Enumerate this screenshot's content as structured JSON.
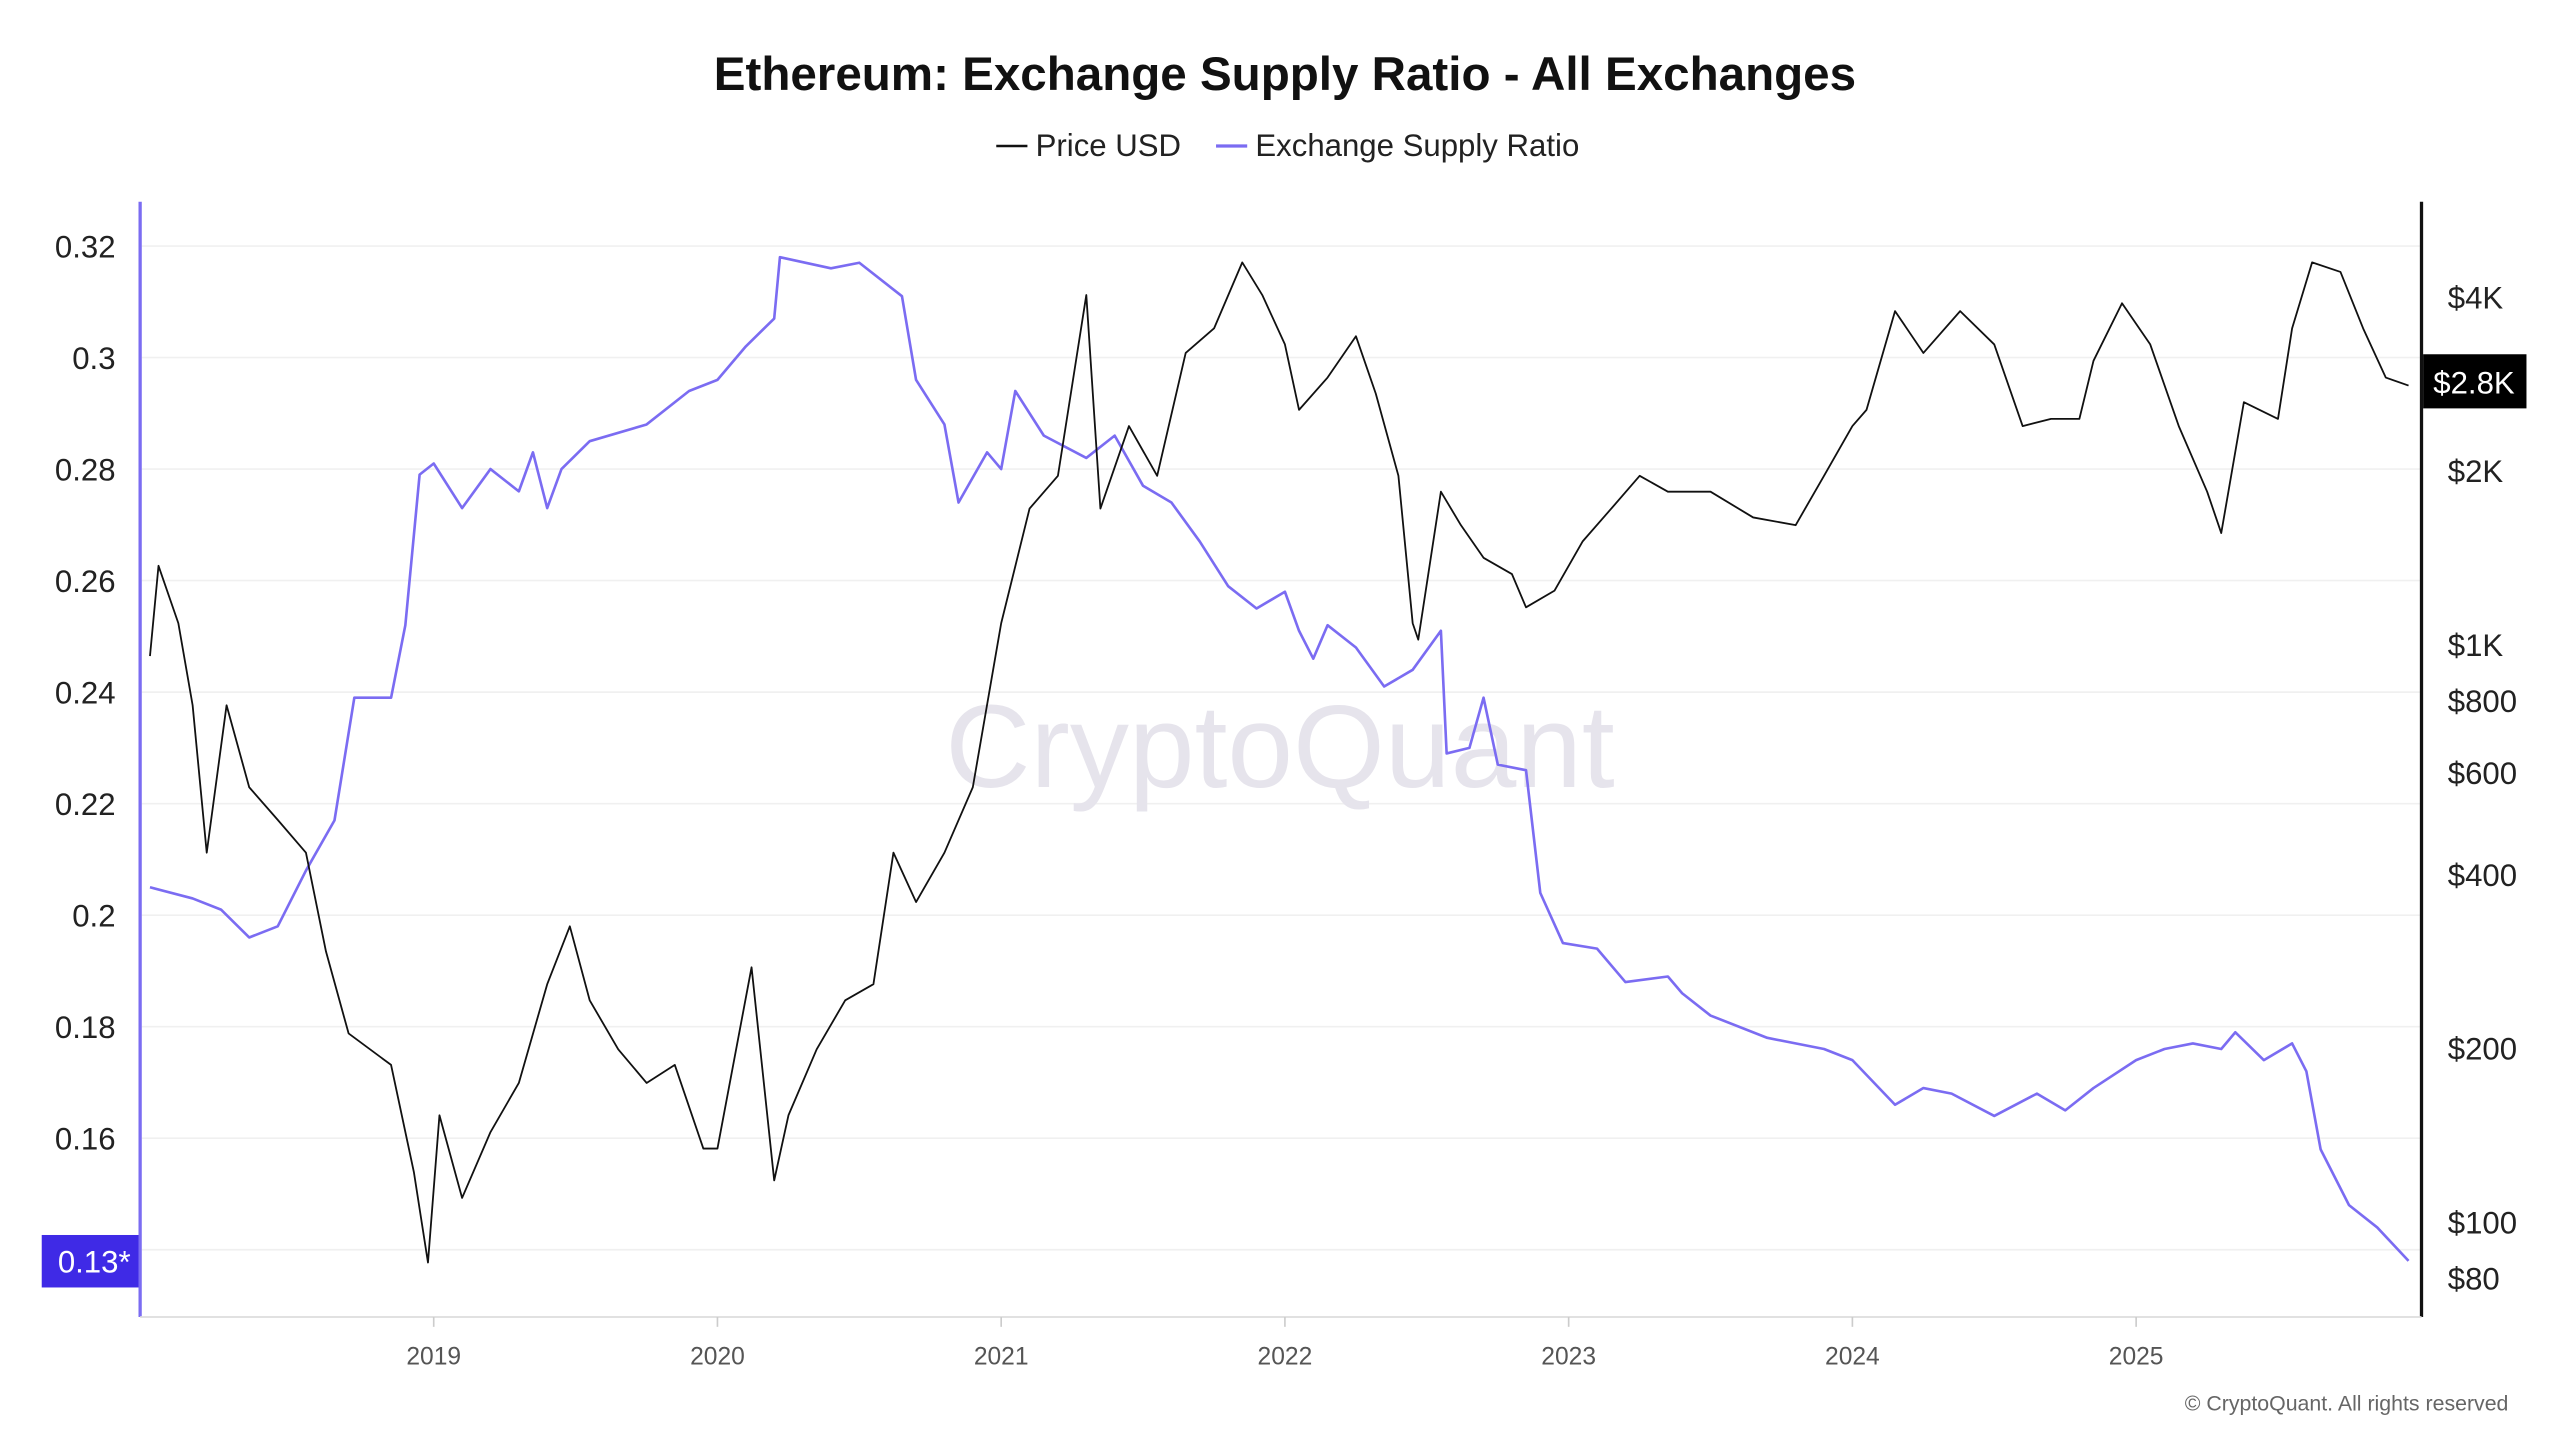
{
  "chart_data": {
    "type": "line",
    "title": "Ethereum: Exchange Supply Ratio - All Exchanges",
    "legend": [
      "Price USD",
      "Exchange Supply Ratio"
    ],
    "legend_position": "top-center",
    "watermark": "CryptoQuant",
    "footer": "© CryptoQuant. All rights reserved",
    "x_ticks": [
      "2019",
      "2020",
      "2021",
      "2022",
      "2023",
      "2024",
      "2025"
    ],
    "x_range": [
      2018.0,
      2025.96
    ],
    "left_axis": {
      "ticks": [
        0.32,
        0.3,
        0.28,
        0.26,
        0.24,
        0.22,
        0.2,
        0.18,
        0.16
      ],
      "labels": [
        "0.32",
        "0.3",
        "0.28",
        "0.26",
        "0.24",
        "0.22",
        "0.2",
        "0.18",
        "0.16"
      ],
      "current_label": "0.13*",
      "range": [
        0.128,
        0.328
      ]
    },
    "right_axis": {
      "scale": "log",
      "ticks": [
        4000,
        2000,
        1000,
        800,
        600,
        400,
        200,
        100,
        80
      ],
      "labels": [
        "$4K",
        "$2K",
        "$1K",
        "$800",
        "$600",
        "$400",
        "$200",
        "$100",
        "$80"
      ],
      "current_label": "$2.8K"
    },
    "colors": {
      "price": "#111111",
      "ratio": "#7b6cf2",
      "ratio_badge": "#3f2ae6",
      "price_badge": "#000000"
    },
    "series": [
      {
        "name": "Exchange Supply Ratio",
        "axis": "left",
        "x": [
          2018.0,
          2018.15,
          2018.25,
          2018.35,
          2018.45,
          2018.55,
          2018.65,
          2018.72,
          2018.85,
          2018.9,
          2018.95,
          2019.0,
          2019.1,
          2019.2,
          2019.3,
          2019.35,
          2019.4,
          2019.45,
          2019.55,
          2019.75,
          2019.9,
          2020.0,
          2020.1,
          2020.2,
          2020.22,
          2020.4,
          2020.5,
          2020.65,
          2020.7,
          2020.8,
          2020.85,
          2020.95,
          2021.0,
          2021.05,
          2021.15,
          2021.3,
          2021.4,
          2021.5,
          2021.6,
          2021.7,
          2021.8,
          2021.9,
          2022.0,
          2022.05,
          2022.1,
          2022.15,
          2022.25,
          2022.35,
          2022.45,
          2022.55,
          2022.57,
          2022.65,
          2022.7,
          2022.75,
          2022.85,
          2022.9,
          2022.98,
          2023.1,
          2023.2,
          2023.35,
          2023.4,
          2023.5,
          2023.7,
          2023.9,
          2024.0,
          2024.15,
          2024.25,
          2024.35,
          2024.5,
          2024.65,
          2024.75,
          2024.85,
          2025.0,
          2025.1,
          2025.2,
          2025.3,
          2025.35,
          2025.45,
          2025.55,
          2025.6,
          2025.65,
          2025.75,
          2025.85,
          2025.96
        ],
        "values": [
          0.205,
          0.203,
          0.201,
          0.196,
          0.198,
          0.208,
          0.217,
          0.239,
          0.239,
          0.252,
          0.279,
          0.281,
          0.273,
          0.28,
          0.276,
          0.283,
          0.273,
          0.28,
          0.285,
          0.288,
          0.294,
          0.296,
          0.302,
          0.307,
          0.318,
          0.316,
          0.317,
          0.311,
          0.296,
          0.288,
          0.274,
          0.283,
          0.28,
          0.294,
          0.286,
          0.282,
          0.286,
          0.277,
          0.274,
          0.267,
          0.259,
          0.255,
          0.258,
          0.251,
          0.246,
          0.252,
          0.248,
          0.241,
          0.244,
          0.251,
          0.229,
          0.23,
          0.239,
          0.227,
          0.226,
          0.204,
          0.195,
          0.194,
          0.188,
          0.189,
          0.186,
          0.182,
          0.178,
          0.176,
          0.174,
          0.166,
          0.169,
          0.168,
          0.164,
          0.168,
          0.165,
          0.169,
          0.174,
          0.176,
          0.177,
          0.176,
          0.179,
          0.174,
          0.177,
          0.172,
          0.158,
          0.148,
          0.144,
          0.138
        ]
      },
      {
        "name": "Price USD",
        "axis": "right",
        "x": [
          2018.0,
          2018.03,
          2018.1,
          2018.15,
          2018.2,
          2018.27,
          2018.35,
          2018.45,
          2018.55,
          2018.62,
          2018.7,
          2018.85,
          2018.93,
          2018.98,
          2019.02,
          2019.1,
          2019.2,
          2019.3,
          2019.4,
          2019.48,
          2019.55,
          2019.65,
          2019.75,
          2019.85,
          2019.95,
          2020.0,
          2020.12,
          2020.2,
          2020.25,
          2020.35,
          2020.45,
          2020.55,
          2020.62,
          2020.7,
          2020.8,
          2020.9,
          2021.0,
          2021.1,
          2021.2,
          2021.3,
          2021.35,
          2021.45,
          2021.55,
          2021.65,
          2021.75,
          2021.85,
          2021.92,
          2022.0,
          2022.05,
          2022.15,
          2022.25,
          2022.32,
          2022.4,
          2022.45,
          2022.47,
          2022.55,
          2022.62,
          2022.7,
          2022.8,
          2022.85,
          2022.95,
          2023.05,
          2023.15,
          2023.25,
          2023.35,
          2023.5,
          2023.65,
          2023.8,
          2023.9,
          2024.0,
          2024.05,
          2024.15,
          2024.25,
          2024.38,
          2024.5,
          2024.6,
          2024.7,
          2024.8,
          2024.85,
          2024.95,
          2025.05,
          2025.15,
          2025.25,
          2025.3,
          2025.38,
          2025.5,
          2025.55,
          2025.62,
          2025.72,
          2025.8,
          2025.88,
          2025.96
        ],
        "values": [
          955,
          1369,
          1089,
          785,
          436,
          785,
          566,
          497,
          436,
          294,
          212,
          187,
          122,
          85,
          153,
          110,
          143,
          174,
          258,
          325,
          242,
          199,
          174,
          187,
          134,
          134,
          276,
          118,
          153,
          199,
          242,
          258,
          436,
          358,
          436,
          566,
          1089,
          1720,
          1960,
          4030,
          1720,
          2390,
          1960,
          3200,
          3530,
          4590,
          4030,
          3310,
          2550,
          2900,
          3420,
          2720,
          1960,
          1089,
          1020,
          1840,
          1610,
          1413,
          1325,
          1160,
          1240,
          1510,
          1720,
          1960,
          1840,
          1840,
          1660,
          1610,
          1960,
          2390,
          2550,
          3780,
          3200,
          3780,
          3310,
          2390,
          2460,
          2460,
          3100,
          3900,
          3310,
          2390,
          1840,
          1560,
          2630,
          2460,
          3530,
          4590,
          4420,
          3530,
          2900,
          2810
        ]
      }
    ]
  }
}
